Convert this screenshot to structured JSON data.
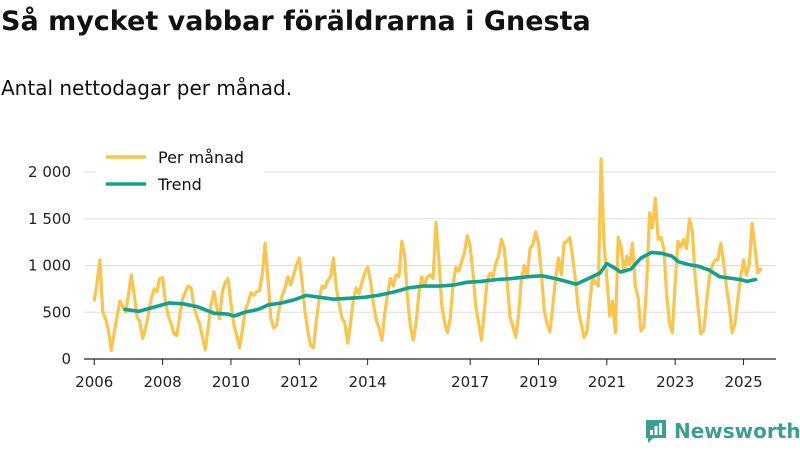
{
  "title": "Så mycket vabbar föräldrarna i Gnesta",
  "subtitle": "Antal nettodagar per månad.",
  "brand": {
    "name": "Newsworthy",
    "icon": "newsworthy-logo-icon"
  },
  "colors": {
    "monthly": "#fbc54b",
    "trend": "#14a08e",
    "grid": "#dddddd",
    "axis": "#222222"
  },
  "chart_data": {
    "type": "line",
    "title": "Så mycket vabbar föräldrarna i Gnesta",
    "subtitle": "Antal nettodagar per månad.",
    "xlabel": "",
    "ylabel": "",
    "ylim": [
      0,
      2000
    ],
    "xlim": [
      2005.7,
      2025.95
    ],
    "grid": true,
    "legend_position": "top-left",
    "y_ticks": [
      {
        "value": 0,
        "label": "0"
      },
      {
        "value": 500,
        "label": "500"
      },
      {
        "value": 1000,
        "label": "1 000"
      },
      {
        "value": 1500,
        "label": "1 500"
      },
      {
        "value": 2000,
        "label": "2 000"
      }
    ],
    "x_ticks": [
      {
        "value": 2006,
        "label": "2006"
      },
      {
        "value": 2008,
        "label": "2008"
      },
      {
        "value": 2010,
        "label": "2010"
      },
      {
        "value": 2012,
        "label": "2012"
      },
      {
        "value": 2014,
        "label": "2014"
      },
      {
        "value": 2017,
        "label": "2017"
      },
      {
        "value": 2019,
        "label": "2019"
      },
      {
        "value": 2021,
        "label": "2021"
      },
      {
        "value": 2023,
        "label": "2023"
      },
      {
        "value": 2025,
        "label": "2025"
      }
    ],
    "series": [
      {
        "name": "Per månad",
        "color": "#fbc54b",
        "start": 2006.0,
        "step": 0.0833333,
        "values": [
          630,
          820,
          1060,
          500,
          430,
          300,
          90,
          280,
          450,
          620,
          560,
          500,
          680,
          900,
          700,
          450,
          400,
          220,
          320,
          480,
          640,
          750,
          720,
          860,
          870,
          620,
          460,
          380,
          270,
          250,
          460,
          640,
          720,
          780,
          760,
          560,
          450,
          380,
          230,
          100,
          340,
          580,
          720,
          560,
          430,
          720,
          820,
          860,
          600,
          370,
          260,
          120,
          300,
          520,
          600,
          710,
          680,
          720,
          730,
          900,
          1240,
          850,
          440,
          330,
          360,
          550,
          680,
          760,
          880,
          790,
          900,
          1000,
          1080,
          820,
          500,
          300,
          140,
          120,
          420,
          640,
          780,
          760,
          840,
          880,
          1080,
          760,
          580,
          440,
          380,
          170,
          380,
          640,
          760,
          700,
          820,
          920,
          980,
          840,
          600,
          420,
          330,
          200,
          480,
          700,
          860,
          780,
          900,
          880,
          1260,
          1100,
          650,
          350,
          200,
          380,
          700,
          880,
          780,
          880,
          900,
          860,
          1460,
          1080,
          580,
          400,
          280,
          430,
          800,
          980,
          940,
          1040,
          1140,
          1320,
          1200,
          920,
          560,
          380,
          200,
          520,
          840,
          920,
          880,
          1020,
          1100,
          1280,
          1180,
          820,
          450,
          350,
          230,
          480,
          860,
          1000,
          880,
          1180,
          1220,
          1360,
          1240,
          930,
          520,
          380,
          290,
          560,
          860,
          1080,
          900,
          1240,
          1260,
          1300,
          1080,
          840,
          520,
          380,
          230,
          290,
          600,
          880,
          820,
          780,
          2140,
          1240,
          870,
          460,
          620,
          280,
          1300,
          1200,
          930,
          1100,
          1010,
          1240,
          780,
          650,
          300,
          340,
          800,
          1560,
          1400,
          1720,
          1280,
          1300,
          1180,
          700,
          380,
          280,
          820,
          1260,
          1200,
          1280,
          1180,
          1500,
          1380,
          880,
          560,
          270,
          300,
          600,
          880,
          1000,
          1060,
          1060,
          1240,
          1040,
          780,
          560,
          280,
          380,
          640,
          880,
          1060,
          900,
          1000,
          1450,
          1200,
          920,
          960
        ]
      },
      {
        "name": "Trend",
        "color": "#14a08e",
        "start": 2006.9,
        "points": [
          [
            2006.9,
            530
          ],
          [
            2007.3,
            510
          ],
          [
            2007.8,
            560
          ],
          [
            2008.2,
            600
          ],
          [
            2008.6,
            590
          ],
          [
            2009.0,
            560
          ],
          [
            2009.5,
            490
          ],
          [
            2009.9,
            480
          ],
          [
            2010.1,
            460
          ],
          [
            2010.4,
            500
          ],
          [
            2010.8,
            530
          ],
          [
            2011.1,
            580
          ],
          [
            2011.5,
            600
          ],
          [
            2011.9,
            640
          ],
          [
            2012.2,
            680
          ],
          [
            2012.6,
            660
          ],
          [
            2013.0,
            640
          ],
          [
            2013.5,
            650
          ],
          [
            2013.9,
            660
          ],
          [
            2014.3,
            680
          ],
          [
            2014.8,
            720
          ],
          [
            2015.2,
            760
          ],
          [
            2015.6,
            780
          ],
          [
            2016.1,
            780
          ],
          [
            2016.5,
            790
          ],
          [
            2016.9,
            820
          ],
          [
            2017.3,
            830
          ],
          [
            2017.8,
            850
          ],
          [
            2018.2,
            860
          ],
          [
            2018.7,
            880
          ],
          [
            2019.1,
            890
          ],
          [
            2019.5,
            860
          ],
          [
            2019.9,
            820
          ],
          [
            2020.1,
            800
          ],
          [
            2020.4,
            850
          ],
          [
            2020.8,
            920
          ],
          [
            2021.0,
            1020
          ],
          [
            2021.2,
            980
          ],
          [
            2021.4,
            930
          ],
          [
            2021.7,
            960
          ],
          [
            2022.0,
            1080
          ],
          [
            2022.3,
            1140
          ],
          [
            2022.6,
            1130
          ],
          [
            2022.9,
            1100
          ],
          [
            2023.1,
            1040
          ],
          [
            2023.4,
            1010
          ],
          [
            2023.7,
            990
          ],
          [
            2024.0,
            950
          ],
          [
            2024.3,
            880
          ],
          [
            2024.7,
            860
          ],
          [
            2024.9,
            850
          ],
          [
            2025.1,
            830
          ],
          [
            2025.35,
            850
          ]
        ]
      }
    ]
  }
}
